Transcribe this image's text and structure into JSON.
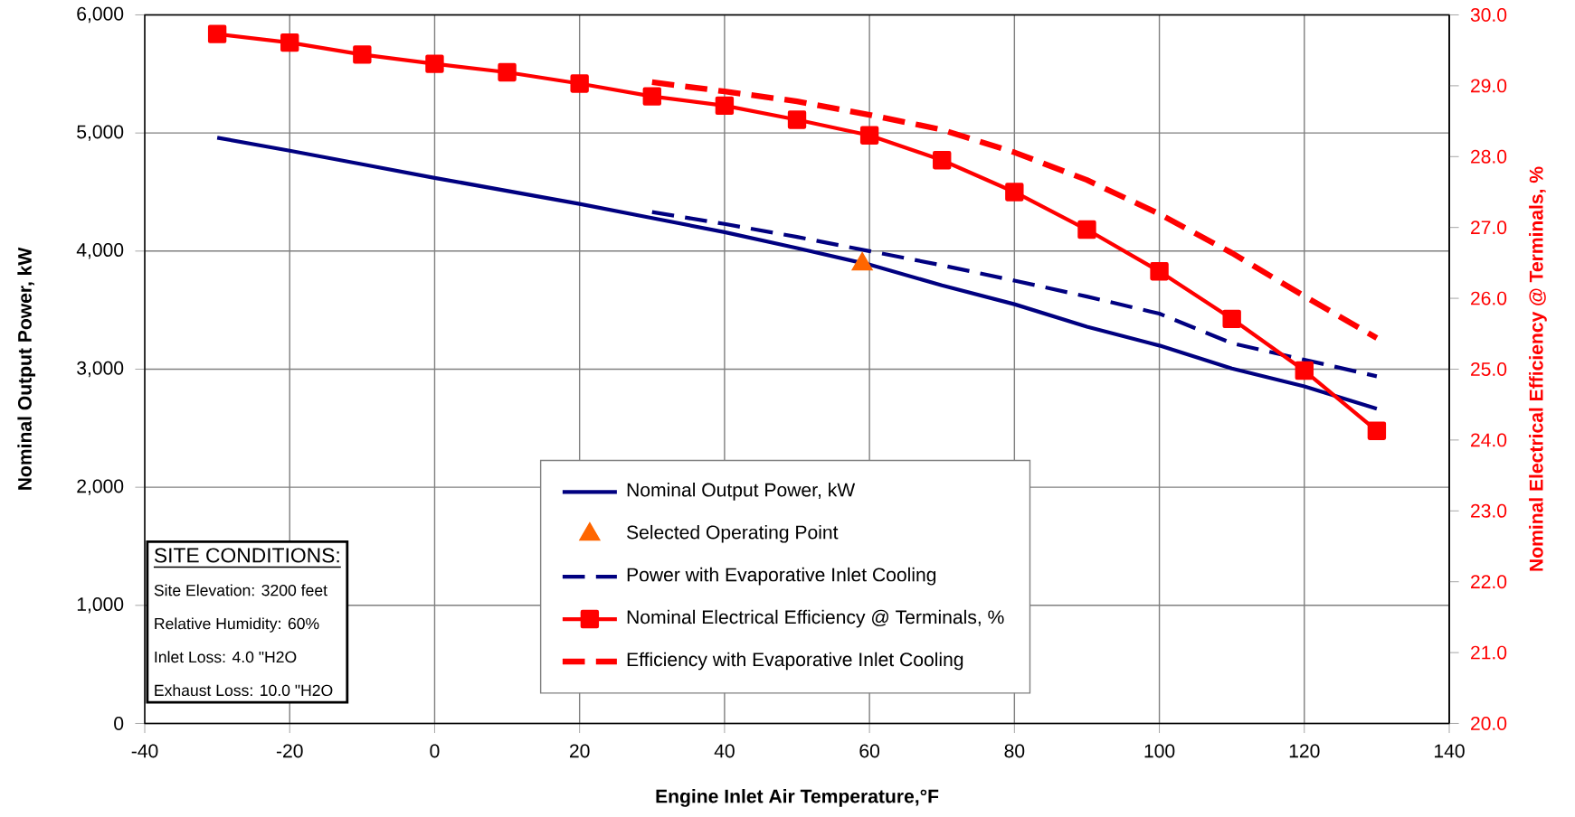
{
  "chart_data": {
    "type": "line",
    "xlabel": "Engine Inlet Air Temperature,°F",
    "ylabel": "Nominal Output Power, kW",
    "y2label": "Nominal Electrical Efficiency @ Terminals, %",
    "xlim": [
      -40,
      140
    ],
    "xticks": [
      -40,
      -20,
      0,
      20,
      40,
      60,
      80,
      100,
      120,
      140
    ],
    "ylim": [
      0,
      6000
    ],
    "yticks": [
      {
        "value": 0,
        "label": "0"
      },
      {
        "value": 1000,
        "label": "1,000"
      },
      {
        "value": 2000,
        "label": "2,000"
      },
      {
        "value": 3000,
        "label": "3,000"
      },
      {
        "value": 4000,
        "label": "4,000"
      },
      {
        "value": 5000,
        "label": "5,000"
      },
      {
        "value": 6000,
        "label": "6,000"
      }
    ],
    "y2lim": [
      20,
      30
    ],
    "y2ticks": [
      {
        "value": 20,
        "label": "20.0"
      },
      {
        "value": 21,
        "label": "21.0"
      },
      {
        "value": 22,
        "label": "22.0"
      },
      {
        "value": 23,
        "label": "23.0"
      },
      {
        "value": 24,
        "label": "24.0"
      },
      {
        "value": 25,
        "label": "25.0"
      },
      {
        "value": 26,
        "label": "26.0"
      },
      {
        "value": 27,
        "label": "27.0"
      },
      {
        "value": 28,
        "label": "28.0"
      },
      {
        "value": 29,
        "label": "29.0"
      },
      {
        "value": 30,
        "label": "30.0"
      }
    ],
    "grid": true,
    "legend": "bottom",
    "series": [
      {
        "name": "Nominal Output Power, kW",
        "color": "#000080",
        "line_style": "solid",
        "x": [
          -30,
          -20,
          -10,
          0,
          10,
          20,
          30,
          40,
          50,
          60,
          70,
          80,
          90,
          100,
          110,
          120,
          130
        ],
        "values": [
          4960,
          4850,
          4735,
          4620,
          4510,
          4400,
          4280,
          4160,
          4025,
          3885,
          3710,
          3550,
          3360,
          3200,
          3005,
          2855,
          2665
        ]
      },
      {
        "name": "Selected Operating Point",
        "type": "scatter",
        "marker": "triangle",
        "color": "#ff6600",
        "x": [
          59
        ],
        "values": [
          3890
        ]
      },
      {
        "name": "Power with Evaporative Inlet Cooling",
        "color": "#000080",
        "line_style": "dashed",
        "x": [
          30,
          40,
          50,
          60,
          70,
          80,
          90,
          100,
          110,
          120,
          130
        ],
        "values": [
          4330,
          4230,
          4120,
          4000,
          3880,
          3750,
          3615,
          3470,
          3220,
          3080,
          2940
        ]
      },
      {
        "name": "Nominal Electrical Efficiency @ Terminals, %",
        "axis": "y2",
        "color": "#ff0000",
        "line_style": "solid",
        "marker": "square",
        "x": [
          -30,
          -20,
          -10,
          0,
          10,
          20,
          30,
          40,
          50,
          60,
          70,
          80,
          90,
          100,
          110,
          120,
          130
        ],
        "values": [
          29.73,
          29.61,
          29.44,
          29.31,
          29.19,
          29.03,
          28.85,
          28.72,
          28.52,
          28.3,
          27.95,
          27.5,
          26.97,
          26.38,
          25.71,
          24.98,
          24.13
        ]
      },
      {
        "name": "Efficiency with Evaporative Inlet Cooling",
        "axis": "y2",
        "color": "#ff0000",
        "line_style": "dashed",
        "x": [
          30,
          40,
          50,
          60,
          70,
          80,
          90,
          100,
          110,
          120,
          130
        ],
        "values": [
          29.05,
          28.92,
          28.78,
          28.59,
          28.38,
          28.06,
          27.67,
          27.19,
          26.64,
          26.03,
          25.44
        ]
      }
    ],
    "annotations": [
      "SITE CONDITIONS:",
      "Site Elevation: 3200 feet",
      "Relative Humidity: 60%",
      "Inlet Loss: 4.0 \"H2O",
      "Exhaust Loss: 10.0 \"H2O"
    ]
  }
}
